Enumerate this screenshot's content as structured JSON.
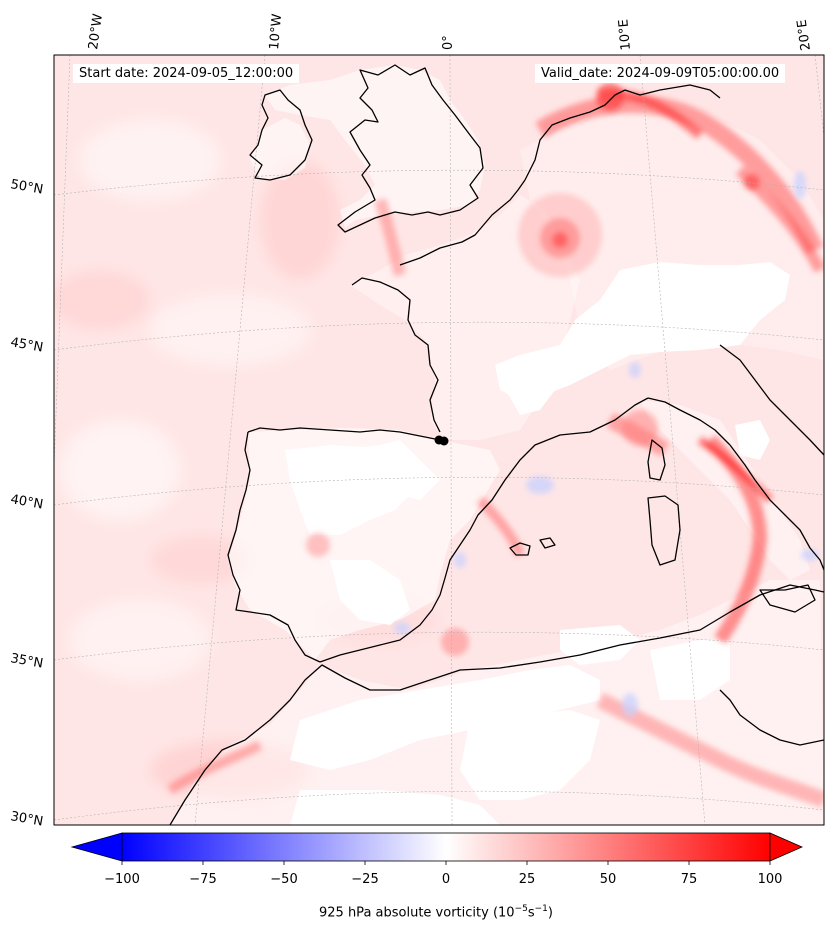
{
  "header": {
    "start_date": "Start date: 2024-09-05_12:00:00",
    "valid_date": "Valid_date: 2024-09-09T05:00:00.00"
  },
  "map": {
    "lon_labels": [
      "20°W",
      "10°W",
      "0°",
      "10°E",
      "20°E"
    ],
    "lat_labels": [
      "50°N",
      "45°N",
      "40°N",
      "35°N",
      "30°N"
    ],
    "colors": {
      "coastline": "#000000",
      "land_fill": "#ffffff",
      "weak_positive": "#ffe4e4",
      "strong_positive": "#ff1e1e",
      "negative": "#dde4ff",
      "marker": "#000000"
    }
  },
  "colorbar": {
    "tick_labels": [
      "−100",
      "−75",
      "−50",
      "−25",
      "0",
      "25",
      "50",
      "75",
      "100"
    ],
    "min": -100,
    "max": 100,
    "colormap": "bwr",
    "label_prefix": "925 hPa absolute vorticity (10",
    "label_exp1": "−5",
    "label_mid": "s",
    "label_exp2": "−1",
    "label_suffix": ")"
  }
}
